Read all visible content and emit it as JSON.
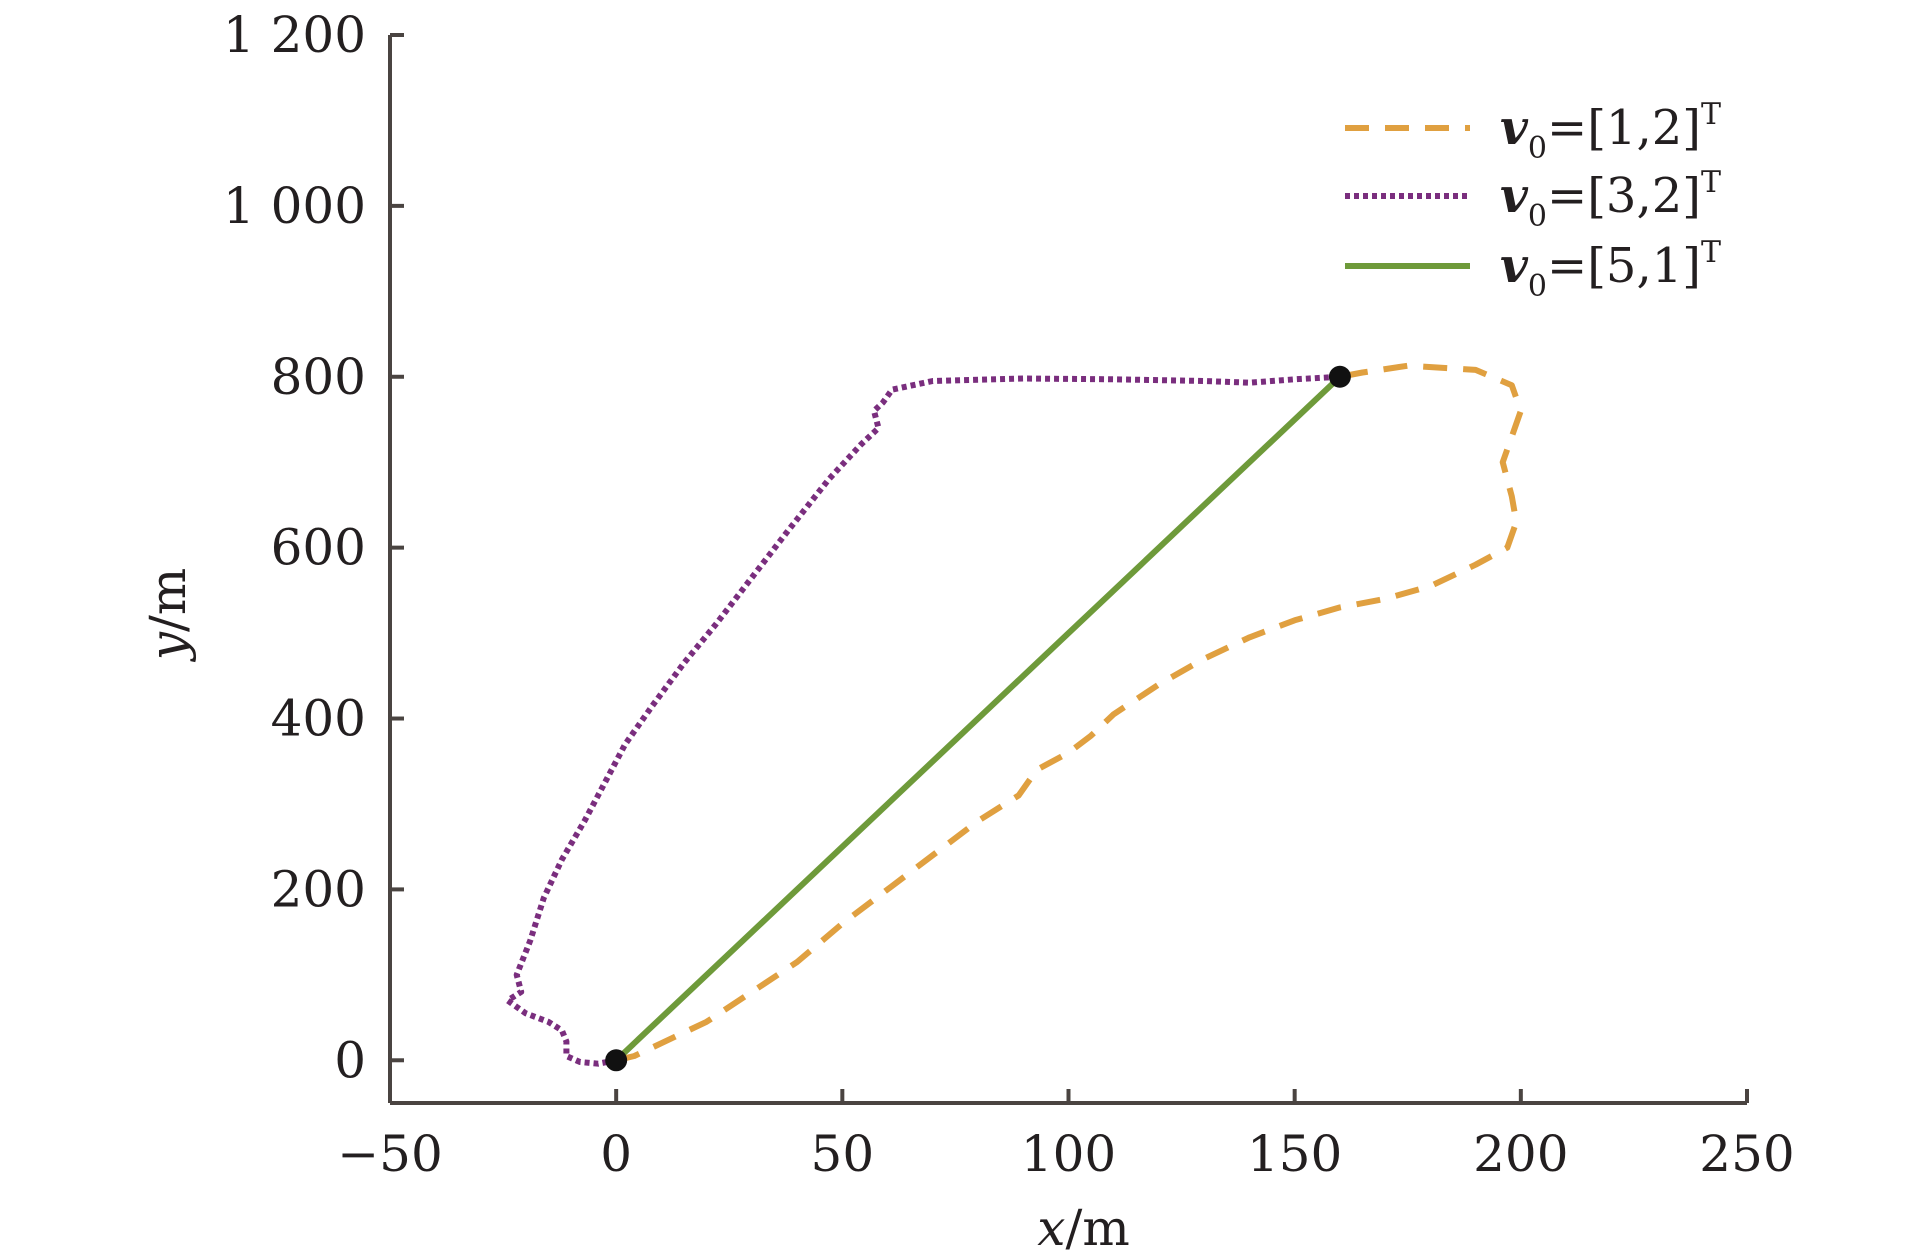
{
  "chart_data": {
    "type": "line",
    "title": "",
    "xlabel": {
      "var": "x",
      "unit": "/m"
    },
    "ylabel": {
      "var": "y",
      "unit": "/m"
    },
    "xlim": [
      -50,
      250
    ],
    "ylim": [
      -50,
      1200
    ],
    "x_ticks": [
      -50,
      0,
      50,
      100,
      150,
      200,
      250
    ],
    "x_tick_labels": [
      "−50",
      "0",
      "50",
      "100",
      "150",
      "200",
      "250"
    ],
    "y_ticks": [
      0,
      200,
      400,
      600,
      800,
      1000,
      1200
    ],
    "y_tick_labels": [
      "0",
      "200",
      "400",
      "600",
      "800",
      "1 000",
      "1 200"
    ],
    "grid": false,
    "legend_position": "top-right",
    "colors": {
      "axis": "#4a4441",
      "orange": "#e0a040",
      "purple": "#7a2e7e",
      "green": "#6e9a3a",
      "marker": "#111111"
    },
    "series": [
      {
        "name": "v0=[1,2]T",
        "legend": {
          "sym": "v",
          "sub": "0",
          "eq": "=[1,2]",
          "sup": "T"
        },
        "style": "dashed",
        "color": "#e0a040",
        "points": [
          [
            0,
            0
          ],
          [
            4,
            5
          ],
          [
            10,
            20
          ],
          [
            20,
            45
          ],
          [
            30,
            80
          ],
          [
            40,
            115
          ],
          [
            50,
            160
          ],
          [
            60,
            200
          ],
          [
            70,
            240
          ],
          [
            80,
            280
          ],
          [
            89,
            310
          ],
          [
            93,
            340
          ],
          [
            100,
            360
          ],
          [
            105,
            380
          ],
          [
            110,
            405
          ],
          [
            120,
            440
          ],
          [
            130,
            470
          ],
          [
            140,
            495
          ],
          [
            150,
            515
          ],
          [
            160,
            530
          ],
          [
            170,
            540
          ],
          [
            180,
            555
          ],
          [
            190,
            580
          ],
          [
            197,
            600
          ],
          [
            199,
            630
          ],
          [
            198,
            660
          ],
          [
            196,
            700
          ],
          [
            198,
            730
          ],
          [
            200,
            760
          ],
          [
            198,
            790
          ],
          [
            190,
            808
          ],
          [
            175,
            813
          ],
          [
            165,
            805
          ],
          [
            160,
            800
          ]
        ]
      },
      {
        "name": "v0=[3,2]T",
        "legend": {
          "sym": "v",
          "sub": "0",
          "eq": "=[3,2]",
          "sup": "T"
        },
        "style": "dotted",
        "color": "#7a2e7e",
        "points": [
          [
            0,
            0
          ],
          [
            -4,
            -4
          ],
          [
            -8,
            -2
          ],
          [
            -11,
            5
          ],
          [
            -11,
            22
          ],
          [
            -12,
            35
          ],
          [
            -15,
            45
          ],
          [
            -20,
            55
          ],
          [
            -24,
            70
          ],
          [
            -21,
            80
          ],
          [
            -22,
            100
          ],
          [
            -19,
            140
          ],
          [
            -16,
            190
          ],
          [
            -12,
            235
          ],
          [
            -7,
            280
          ],
          [
            -3,
            320
          ],
          [
            2,
            370
          ],
          [
            8,
            415
          ],
          [
            15,
            465
          ],
          [
            22,
            510
          ],
          [
            30,
            565
          ],
          [
            38,
            620
          ],
          [
            47,
            680
          ],
          [
            54,
            720
          ],
          [
            58,
            740
          ],
          [
            57,
            760
          ],
          [
            59,
            770
          ],
          [
            61,
            785
          ],
          [
            70,
            795
          ],
          [
            90,
            798
          ],
          [
            110,
            797
          ],
          [
            130,
            795
          ],
          [
            140,
            793
          ],
          [
            150,
            797
          ],
          [
            160,
            800
          ]
        ]
      },
      {
        "name": "v0=[5,1]T",
        "legend": {
          "sym": "v",
          "sub": "0",
          "eq": "=[5,1]",
          "sup": "T"
        },
        "style": "solid",
        "color": "#6e9a3a",
        "points": [
          [
            0,
            0
          ],
          [
            160,
            800
          ]
        ]
      }
    ],
    "markers": [
      [
        0,
        0
      ],
      [
        160,
        800
      ]
    ]
  }
}
